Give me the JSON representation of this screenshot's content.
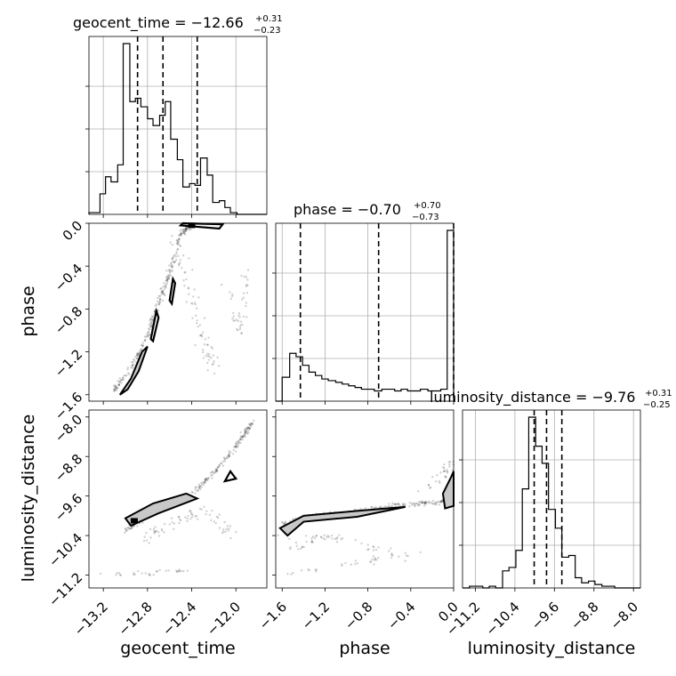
{
  "chart_data": {
    "type": "corner",
    "parameters": [
      "geocent_time",
      "phase",
      "luminosity_distance"
    ],
    "titles": {
      "geocent_time": {
        "text": "geocent_time = −12.66",
        "plus": "+0.31",
        "minus": "−0.23"
      },
      "phase": {
        "text": "phase = −0.70",
        "plus": "+0.70",
        "minus": "−0.73"
      },
      "luminosity_distance": {
        "text": "luminosity_distance = −9.76",
        "plus": "+0.31",
        "minus": "−0.25"
      }
    },
    "axis_labels": {
      "geocent_time": "geocent_time",
      "phase": "phase",
      "luminosity_distance": "luminosity_distance"
    },
    "ranges": {
      "geocent_time": [
        -13.33,
        -11.72
      ],
      "phase": [
        -1.66,
        0.0
      ],
      "luminosity_distance": [
        -11.46,
        -7.86
      ]
    },
    "ticks": {
      "geocent_time": [
        -13.2,
        -12.8,
        -12.4,
        -12.0
      ],
      "phase": [
        -1.6,
        -1.2,
        -0.8,
        -0.4,
        0.0
      ],
      "luminosity_distance": [
        -11.2,
        -10.4,
        -9.6,
        -8.8,
        -8.0
      ]
    },
    "tick_labels": {
      "geocent_time": [
        "−13.2",
        "−12.8",
        "−12.4",
        "−12.0"
      ],
      "phase": [
        "−1.6",
        "−1.2",
        "−0.8",
        "−0.4",
        "0.0"
      ],
      "luminosity_distance": [
        "−11.2",
        "−10.4",
        "−9.6",
        "−8.8",
        "−8.0"
      ]
    },
    "quantiles": {
      "geocent_time": [
        -12.89,
        -12.66,
        -12.35
      ],
      "phase": [
        -1.43,
        -0.7,
        0.0
      ],
      "luminosity_distance": [
        -10.01,
        -9.76,
        -9.45
      ]
    },
    "histograms": {
      "geocent_time": {
        "edges": [
          -13.33,
          -13.23,
          -13.18,
          -13.13,
          -13.07,
          -13.02,
          -12.96,
          -12.91,
          -12.86,
          -12.8,
          -12.75,
          -12.69,
          -12.64,
          -12.59,
          -12.53,
          -12.48,
          -12.42,
          -12.37,
          -12.32,
          -12.26,
          -12.21,
          -12.15,
          -12.1,
          -12.05,
          -11.99,
          -11.94,
          -11.88,
          -11.83,
          -11.72
        ],
        "values": [
          0.01,
          0.12,
          0.22,
          0.19,
          0.29,
          1.0,
          0.66,
          0.68,
          0.63,
          0.56,
          0.52,
          0.58,
          0.66,
          0.44,
          0.32,
          0.16,
          0.18,
          0.17,
          0.33,
          0.23,
          0.07,
          0.08,
          0.04,
          0.01,
          0.0,
          0.0,
          0.0,
          0.0
        ]
      },
      "phase": {
        "edges": [
          -1.66,
          -1.6,
          -1.53,
          -1.47,
          -1.41,
          -1.35,
          -1.29,
          -1.23,
          -1.17,
          -1.1,
          -1.04,
          -0.98,
          -0.92,
          -0.86,
          -0.8,
          -0.74,
          -0.67,
          -0.61,
          -0.55,
          -0.49,
          -0.43,
          -0.37,
          -0.31,
          -0.24,
          -0.18,
          -0.12,
          -0.06,
          0.0
        ],
        "values": [
          0.0,
          0.14,
          0.28,
          0.26,
          0.21,
          0.17,
          0.15,
          0.13,
          0.12,
          0.11,
          0.1,
          0.09,
          0.08,
          0.07,
          0.07,
          0.06,
          0.07,
          0.07,
          0.06,
          0.07,
          0.06,
          0.06,
          0.07,
          0.06,
          0.06,
          0.07,
          1.0
        ]
      },
      "luminosity_distance": {
        "edges": [
          -11.46,
          -11.32,
          -11.05,
          -10.92,
          -10.79,
          -10.65,
          -10.52,
          -10.38,
          -10.25,
          -10.12,
          -9.98,
          -9.85,
          -9.72,
          -9.58,
          -9.45,
          -9.31,
          -9.18,
          -9.05,
          -8.91,
          -8.78,
          -8.64,
          -8.51,
          -8.38,
          -8.24,
          -7.98,
          -7.86
        ],
        "values": [
          0.0,
          0.01,
          0.0,
          0.01,
          0.0,
          0.1,
          0.12,
          0.22,
          0.58,
          1.0,
          0.83,
          0.73,
          0.46,
          0.35,
          0.18,
          0.19,
          0.06,
          0.03,
          0.04,
          0.02,
          0.01,
          0.01,
          0.0,
          0.0,
          0.0
        ]
      }
    },
    "grid": true
  }
}
